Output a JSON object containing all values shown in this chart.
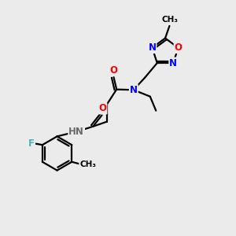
{
  "bg_color": "#ebebeb",
  "bond_color": "#000000",
  "bond_width": 1.6,
  "atom_colors": {
    "N": "#0000ff",
    "O": "#ff0000",
    "F": "#4ab5b5",
    "H": "#6a6a6a",
    "C": "#000000"
  },
  "font_size": 8.5,
  "fig_size": [
    3.0,
    3.0
  ],
  "dpi": 100,
  "xlim": [
    0,
    10
  ],
  "ylim": [
    0,
    10
  ]
}
